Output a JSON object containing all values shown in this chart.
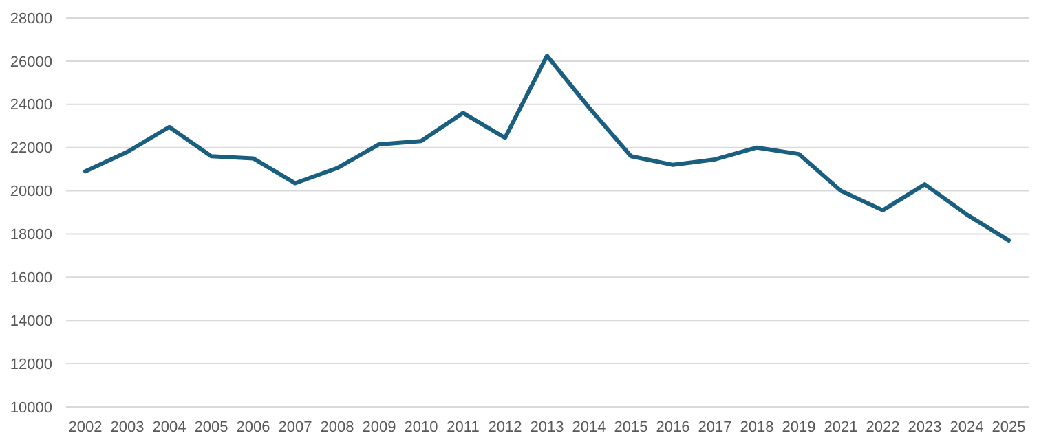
{
  "chart_data": {
    "type": "line",
    "categories": [
      "2002",
      "2003",
      "2004",
      "2005",
      "2006",
      "2007",
      "2008",
      "2009",
      "2010",
      "2011",
      "2012",
      "2013",
      "2014",
      "2015",
      "2016",
      "2017",
      "2018",
      "2019",
      "2021",
      "2022",
      "2023",
      "2024",
      "2025"
    ],
    "series": [
      {
        "color": "#1b5f80",
        "values": [
          20900,
          21800,
          22950,
          21600,
          21500,
          20350,
          21050,
          22150,
          22300,
          23600,
          22450,
          26250,
          23850,
          21600,
          21200,
          21450,
          22000,
          21700,
          20000,
          19100,
          20300,
          18900,
          17700
        ]
      }
    ],
    "ylim": [
      10000,
      28000
    ],
    "yticks": [
      10000,
      12000,
      14000,
      16000,
      18000,
      20000,
      22000,
      24000,
      26000,
      28000
    ],
    "grid": "y",
    "marker": "none",
    "line_style": "solid"
  }
}
